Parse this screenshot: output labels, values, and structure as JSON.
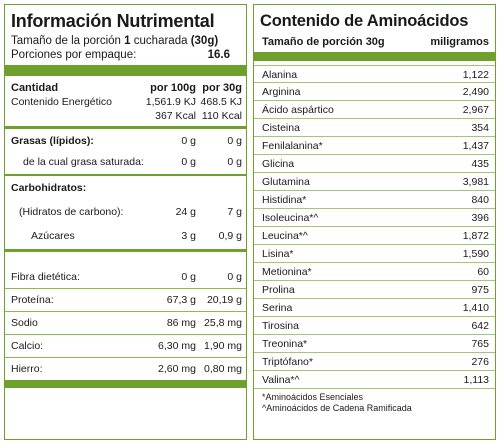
{
  "left": {
    "title": "Información Nutrimental",
    "serving_label": "Tamaño de la porción",
    "serving_qty": "1",
    "serving_unit": "cucharada",
    "serving_grams": "(30g)",
    "portions_label": "Porciones por empaque:",
    "portions_value": "16.6",
    "header": {
      "label": "Cantidad",
      "col1": "por 100g",
      "col2": "por 30g"
    },
    "energy": {
      "label": "Contenido  Energético",
      "kj1": "1,561.9 KJ",
      "kj2": "468.5 KJ",
      "kcal1": "367 Kcal",
      "kcal2": "110 Kcal"
    },
    "grasas": {
      "label": "Grasas (lípidos):",
      "v1": "0 g",
      "v2": "0 g"
    },
    "saturada": {
      "label": "de la cual grasa saturada:",
      "v1": "0 g",
      "v2": "0 g"
    },
    "carbohidratos": {
      "label": "Carbohidratos:"
    },
    "hidratos": {
      "label": "(Hidratos de carbono):",
      "v1": "24 g",
      "v2": "7 g"
    },
    "azucares": {
      "label": "Azúcares",
      "v1": "3 g",
      "v2": "0,9 g"
    },
    "fibra": {
      "label": "Fibra dietética:",
      "v1": "0 g",
      "v2": "0 g"
    },
    "proteina": {
      "label": "Proteína:",
      "v1": "67,3 g",
      "v2": "20,19 g"
    },
    "sodio": {
      "label": "Sodio",
      "v1": "86 mg",
      "v2": "25,8 mg"
    },
    "calcio": {
      "label": "Calcio:",
      "v1": "6,30 mg",
      "v2": "1,90 mg"
    },
    "hierro": {
      "label": "Hierro:",
      "v1": "2,60 mg",
      "v2": "0,80 mg"
    }
  },
  "right": {
    "title": "Contenido de Aminoácidos",
    "head_label": "Tamaño de porción 30g",
    "head_unit": "miligramos",
    "aminos": [
      {
        "name": "Alanina",
        "value": "1,122"
      },
      {
        "name": "Arginina",
        "value": "2,490"
      },
      {
        "name": "Ácido aspártico",
        "value": "2,967"
      },
      {
        "name": "Cisteina",
        "value": "354"
      },
      {
        "name": "Fenilalanina*",
        "value": "1,437"
      },
      {
        "name": "Glicina",
        "value": "435"
      },
      {
        "name": "Glutamina",
        "value": "3,981"
      },
      {
        "name": "Histidina*",
        "value": "840"
      },
      {
        "name": "Isoleucina*^",
        "value": "396"
      },
      {
        "name": "Leucina*^",
        "value": "1,872"
      },
      {
        "name": "Lisina*",
        "value": "1,590"
      },
      {
        "name": "Metionina*",
        "value": "60"
      },
      {
        "name": "Prolina",
        "value": "975"
      },
      {
        "name": "Serina",
        "value": "1,410"
      },
      {
        "name": "Tirosina",
        "value": "642"
      },
      {
        "name": "Treonina*",
        "value": "765"
      },
      {
        "name": "Triptófano*",
        "value": "276"
      },
      {
        "name": "Valina*^",
        "value": "1,113"
      }
    ],
    "note1": "*Aminoácidos Esenciales",
    "note2": "^Aminoácidos de Cadena Ramificada"
  },
  "colors": {
    "accent": "#6ea12c",
    "row_line": "#a3c77a"
  }
}
